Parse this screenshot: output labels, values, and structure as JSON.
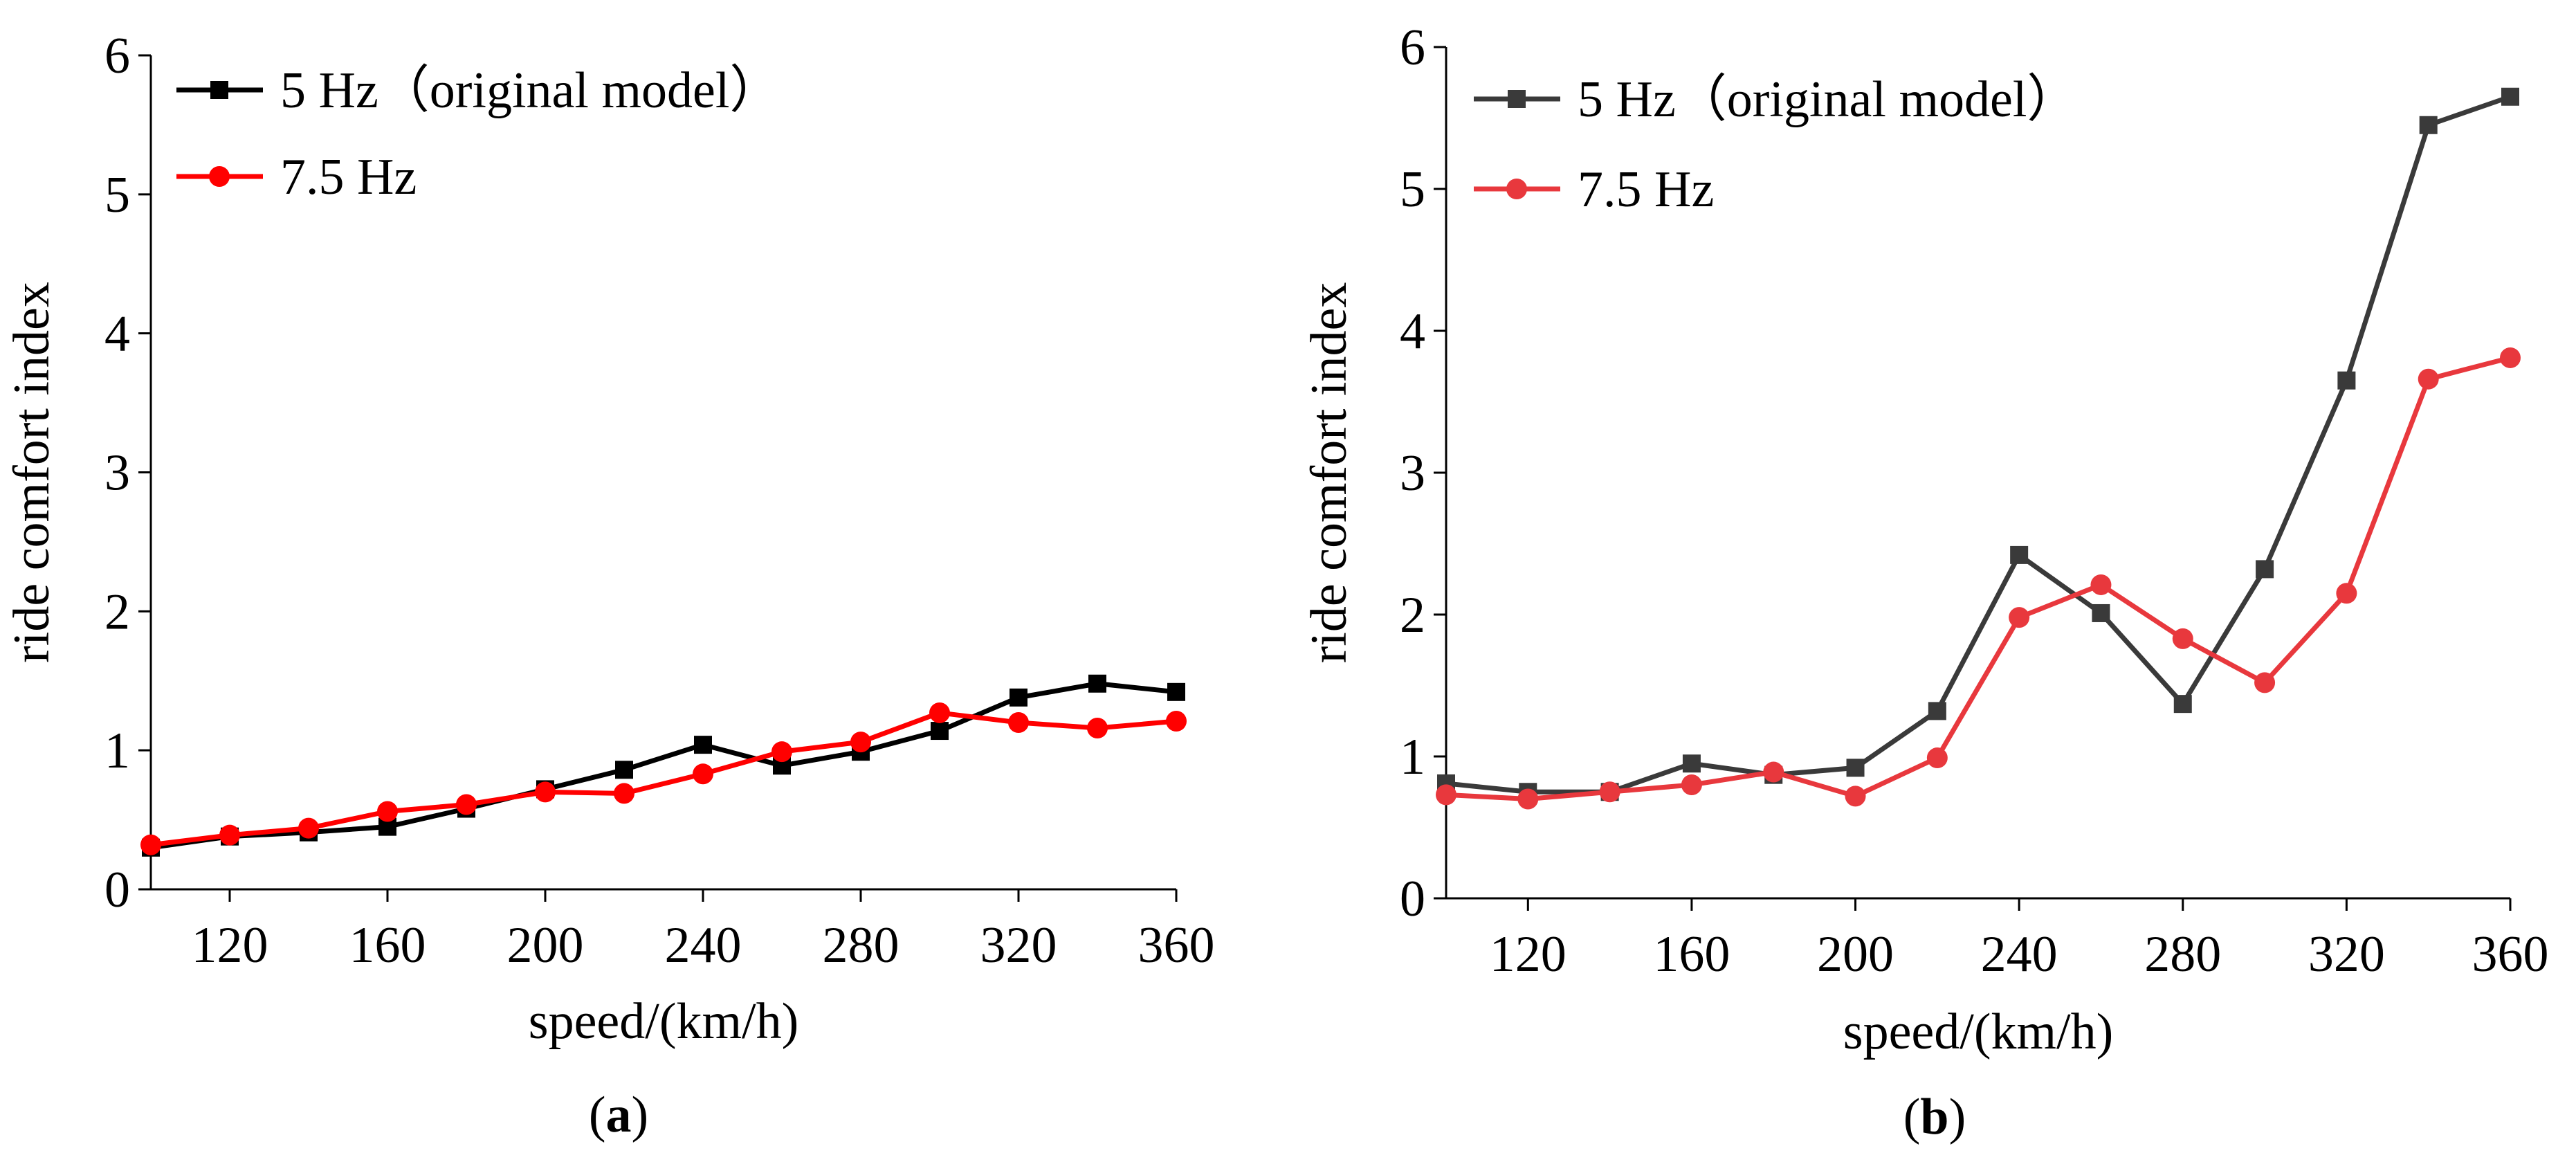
{
  "chart_data": [
    {
      "type": "line",
      "panel_label": "(a)",
      "xlabel": "speed/(km/h)",
      "ylabel": "ride comfort index",
      "xlim": [
        100,
        360
      ],
      "ylim": [
        0,
        6
      ],
      "xticks": [
        120,
        160,
        200,
        240,
        280,
        320,
        360
      ],
      "yticks": [
        0,
        1,
        2,
        3,
        4,
        5,
        6
      ],
      "legend_position": "top-left",
      "x": [
        100,
        120,
        140,
        160,
        180,
        200,
        220,
        240,
        260,
        280,
        300,
        320,
        340,
        360
      ],
      "series": [
        {
          "name": "5 Hz（original model）",
          "color": "#000000",
          "marker": "square",
          "values": [
            0.3,
            0.38,
            0.41,
            0.45,
            0.58,
            0.72,
            0.86,
            1.04,
            0.89,
            0.99,
            1.14,
            1.38,
            1.48,
            1.42
          ]
        },
        {
          "name": "7.5 Hz",
          "color": "#ff0000",
          "marker": "circle",
          "values": [
            0.32,
            0.39,
            0.44,
            0.56,
            0.61,
            0.7,
            0.69,
            0.83,
            0.99,
            1.06,
            1.27,
            1.2,
            1.16,
            1.21
          ]
        }
      ]
    },
    {
      "type": "line",
      "panel_label": "(b)",
      "xlabel": "speed/(km/h)",
      "ylabel": "ride comfort index",
      "xlim": [
        100,
        360
      ],
      "ylim": [
        0,
        6
      ],
      "xticks": [
        120,
        160,
        200,
        240,
        280,
        320,
        360
      ],
      "yticks": [
        0,
        1,
        2,
        3,
        4,
        5,
        6
      ],
      "legend_position": "top-left",
      "x": [
        100,
        120,
        140,
        160,
        180,
        200,
        220,
        240,
        260,
        280,
        300,
        320,
        340,
        360
      ],
      "series": [
        {
          "name": "5 Hz（original model）",
          "color": "#3a3a3a",
          "marker": "square",
          "values": [
            0.81,
            0.75,
            0.75,
            0.95,
            0.87,
            0.92,
            1.32,
            2.42,
            2.01,
            1.37,
            2.32,
            3.65,
            5.45,
            5.65
          ]
        },
        {
          "name": "7.5 Hz",
          "color": "#e8383d",
          "marker": "circle",
          "values": [
            0.73,
            0.7,
            0.75,
            0.8,
            0.89,
            0.72,
            0.99,
            1.98,
            2.21,
            1.83,
            1.52,
            2.15,
            3.66,
            3.81
          ]
        }
      ]
    }
  ]
}
